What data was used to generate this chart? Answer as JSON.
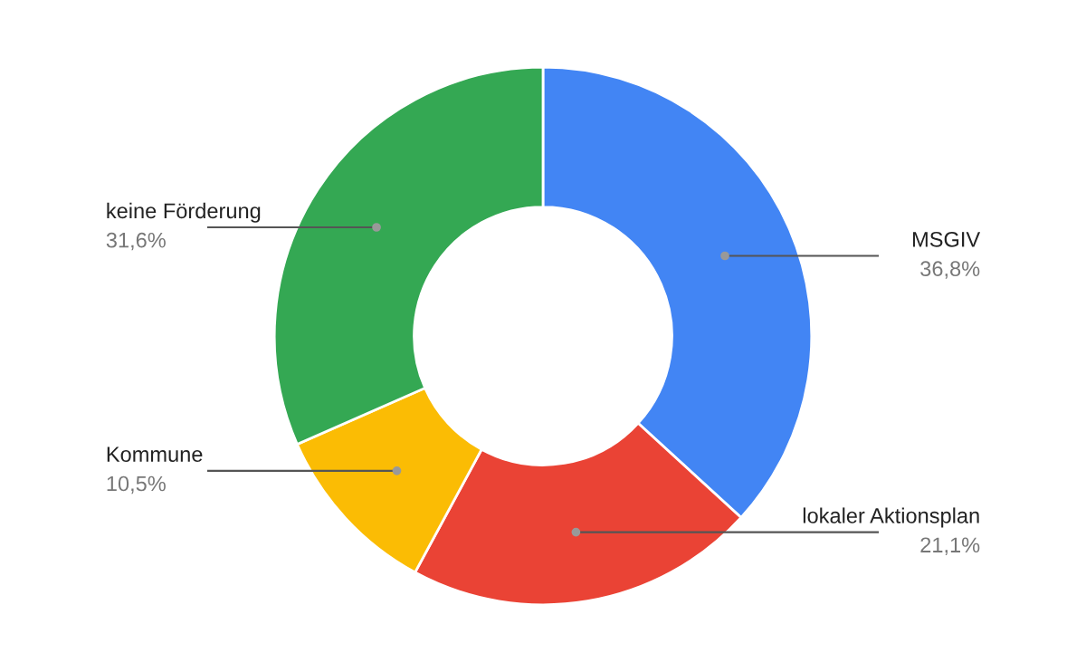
{
  "chart_data": {
    "type": "donut",
    "categories": [
      "MSGIV",
      "lokaler Aktionsplan",
      "Kommune",
      "keine Förderung"
    ],
    "values": [
      36.8,
      21.1,
      10.5,
      31.6
    ],
    "value_labels": [
      "36,8%",
      "21,1%",
      "10,5%",
      "31,6%"
    ],
    "colors": [
      "#4285f4",
      "#ea4335",
      "#fbbc04",
      "#34a853"
    ]
  }
}
